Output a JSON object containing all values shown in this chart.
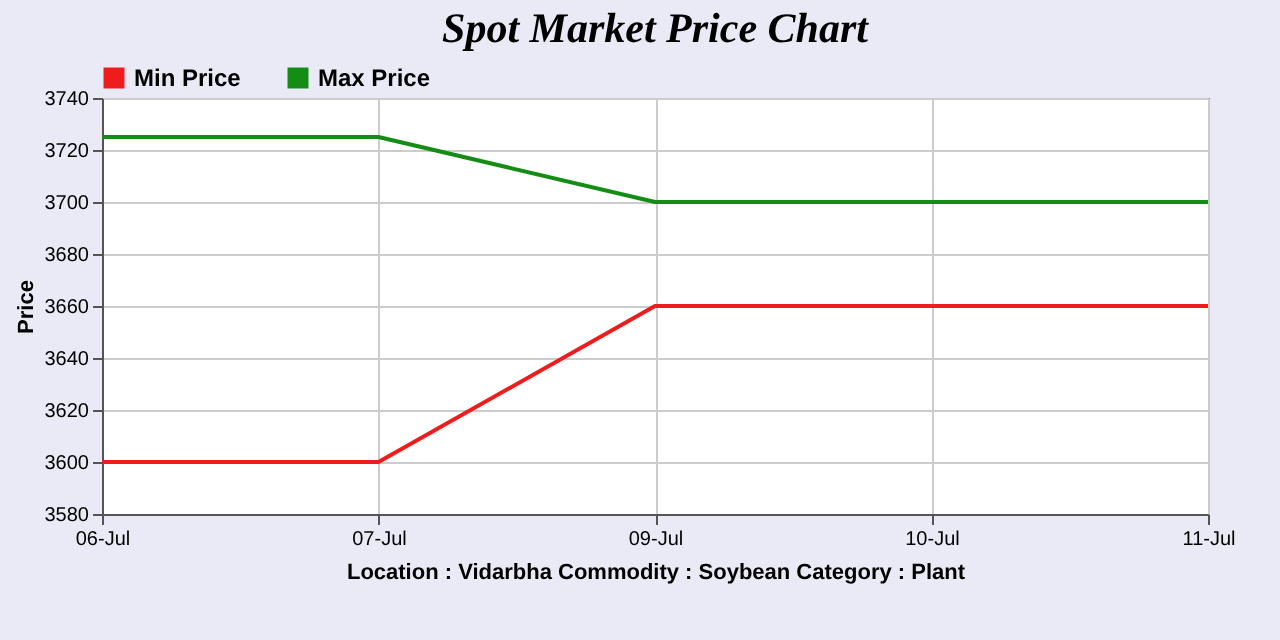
{
  "chart_data": {
    "type": "line",
    "title": "Spot Market Price Chart",
    "xlabel": "Location : Vidarbha       Commodity : Soybean       Category : Plant",
    "ylabel": "Price",
    "categories": [
      "06-Jul",
      "07-Jul",
      "09-Jul",
      "10-Jul",
      "11-Jul"
    ],
    "series": [
      {
        "name": "Min Price",
        "color": "#ee1c1c",
        "values": [
          3600,
          3600,
          3660,
          3660,
          3660
        ]
      },
      {
        "name": "Max Price",
        "color": "#138d13",
        "values": [
          3725,
          3725,
          3700,
          3700,
          3700
        ]
      }
    ],
    "ylim": [
      3580,
      3740
    ],
    "yticks": [
      3580,
      3600,
      3620,
      3640,
      3660,
      3680,
      3700,
      3720,
      3740
    ],
    "grid": true,
    "legend": "top left",
    "marker": "none",
    "line_style": "solid"
  }
}
